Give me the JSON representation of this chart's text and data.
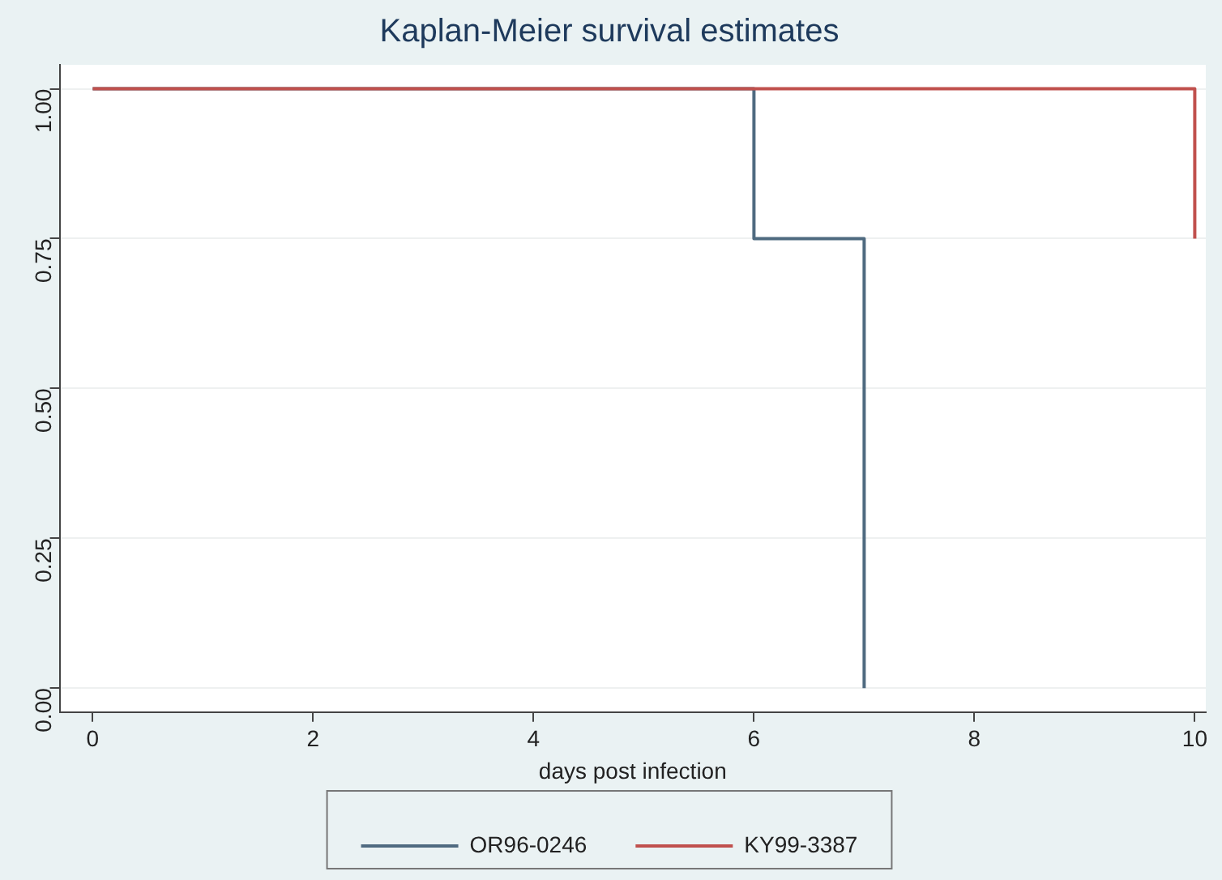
{
  "chart_data": {
    "type": "step",
    "title": "Kaplan-Meier survival estimates",
    "xlabel": "days post infection",
    "xlim": [
      -0.3,
      10.1
    ],
    "xticks": [
      0,
      2,
      4,
      6,
      8,
      10
    ],
    "ylim": [
      -0.04,
      1.04
    ],
    "yticks": [
      {
        "value": 0,
        "label": "0.00"
      },
      {
        "value": 0.25,
        "label": "0.25"
      },
      {
        "value": 0.5,
        "label": "0.50"
      },
      {
        "value": 0.75,
        "label": "0.75"
      },
      {
        "value": 1,
        "label": "1.00"
      }
    ],
    "series": [
      {
        "name": "OR96-0246",
        "color": "#4f6a80",
        "x": [
          0,
          6,
          7
        ],
        "values": [
          1,
          0.75,
          0
        ]
      },
      {
        "name": "KY99-3387",
        "color": "#c0504d",
        "x": [
          0,
          10
        ],
        "values": [
          1,
          0.75
        ]
      }
    ],
    "grid": "y",
    "legend": "bottom",
    "marker": "none",
    "line_style": "solid"
  }
}
